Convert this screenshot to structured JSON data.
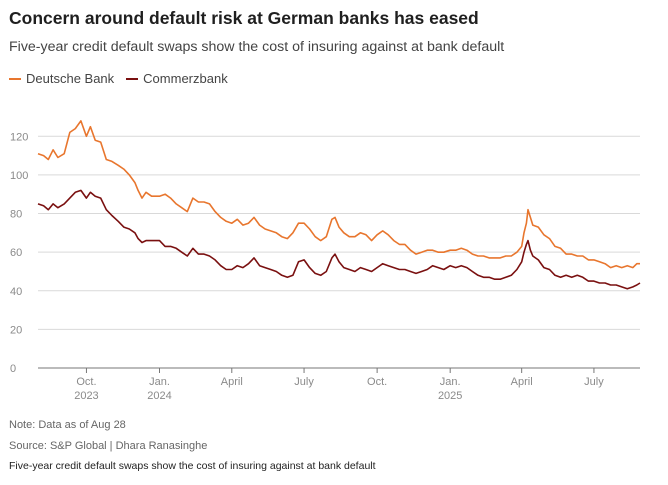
{
  "title": "Concern around default risk at German banks has eased",
  "subtitle": "Five-year credit default swaps show the cost of insuring against at bank default",
  "note": "Note: Data as of Aug 28",
  "source": "Source: S&P Global  | Dhara Ranasinghe",
  "caption": "Five-year credit default swaps show the cost of insuring against at bank default",
  "colors": {
    "deutsche": "#e8762e",
    "commerz": "#7a1010",
    "grid": "#d9d9d9",
    "axis": "#777777",
    "tick_text": "#8a8a8a"
  },
  "chart_data": {
    "type": "line",
    "title": "Concern around default risk at German banks has eased",
    "ylim": [
      0,
      130
    ],
    "yticks": [
      0,
      20,
      40,
      60,
      80,
      100,
      120
    ],
    "grid": true,
    "legend_position": "top-left",
    "x_start": "2023-08-01",
    "x_end": "2025-08-28",
    "xticks": [
      {
        "date": "2023-10-01",
        "label": "Oct.",
        "year": "2023"
      },
      {
        "date": "2024-01-01",
        "label": "Jan.",
        "year": "2024"
      },
      {
        "date": "2024-04-01",
        "label": "April",
        "year": ""
      },
      {
        "date": "2024-07-01",
        "label": "July",
        "year": ""
      },
      {
        "date": "2024-10-01",
        "label": "Oct.",
        "year": ""
      },
      {
        "date": "2025-01-01",
        "label": "Jan.",
        "year": "2025"
      },
      {
        "date": "2025-04-01",
        "label": "April",
        "year": ""
      },
      {
        "date": "2025-07-01",
        "label": "July",
        "year": ""
      }
    ],
    "series": [
      {
        "name": "Deutsche Bank",
        "points": [
          [
            "2023-08-01",
            111
          ],
          [
            "2023-08-08",
            110
          ],
          [
            "2023-08-14",
            108
          ],
          [
            "2023-08-20",
            113
          ],
          [
            "2023-08-26",
            109
          ],
          [
            "2023-09-03",
            111
          ],
          [
            "2023-09-10",
            122
          ],
          [
            "2023-09-17",
            124
          ],
          [
            "2023-09-24",
            128
          ],
          [
            "2023-10-01",
            120
          ],
          [
            "2023-10-06",
            125
          ],
          [
            "2023-10-12",
            118
          ],
          [
            "2023-10-19",
            117
          ],
          [
            "2023-10-26",
            108
          ],
          [
            "2023-11-02",
            107
          ],
          [
            "2023-11-10",
            105
          ],
          [
            "2023-11-17",
            103
          ],
          [
            "2023-11-24",
            100
          ],
          [
            "2023-12-01",
            96
          ],
          [
            "2023-12-05",
            92
          ],
          [
            "2023-12-10",
            88
          ],
          [
            "2023-12-15",
            91
          ],
          [
            "2023-12-22",
            89
          ],
          [
            "2024-01-01",
            89
          ],
          [
            "2024-01-08",
            90
          ],
          [
            "2024-01-15",
            88
          ],
          [
            "2024-01-22",
            85
          ],
          [
            "2024-01-29",
            83
          ],
          [
            "2024-02-05",
            81
          ],
          [
            "2024-02-12",
            88
          ],
          [
            "2024-02-19",
            86
          ],
          [
            "2024-02-26",
            86
          ],
          [
            "2024-03-04",
            85
          ],
          [
            "2024-03-11",
            81
          ],
          [
            "2024-03-18",
            78
          ],
          [
            "2024-03-25",
            76
          ],
          [
            "2024-04-01",
            75
          ],
          [
            "2024-04-08",
            77
          ],
          [
            "2024-04-15",
            74
          ],
          [
            "2024-04-22",
            75
          ],
          [
            "2024-04-29",
            78
          ],
          [
            "2024-05-06",
            74
          ],
          [
            "2024-05-13",
            72
          ],
          [
            "2024-05-20",
            71
          ],
          [
            "2024-05-27",
            70
          ],
          [
            "2024-06-03",
            68
          ],
          [
            "2024-06-10",
            67
          ],
          [
            "2024-06-17",
            70
          ],
          [
            "2024-06-24",
            75
          ],
          [
            "2024-07-01",
            75
          ],
          [
            "2024-07-08",
            72
          ],
          [
            "2024-07-15",
            68
          ],
          [
            "2024-07-22",
            66
          ],
          [
            "2024-07-29",
            68
          ],
          [
            "2024-08-05",
            77
          ],
          [
            "2024-08-09",
            78
          ],
          [
            "2024-08-14",
            73
          ],
          [
            "2024-08-20",
            70
          ],
          [
            "2024-08-27",
            68
          ],
          [
            "2024-09-03",
            68
          ],
          [
            "2024-09-10",
            70
          ],
          [
            "2024-09-17",
            69
          ],
          [
            "2024-09-24",
            66
          ],
          [
            "2024-10-01",
            69
          ],
          [
            "2024-10-08",
            71
          ],
          [
            "2024-10-15",
            69
          ],
          [
            "2024-10-22",
            66
          ],
          [
            "2024-10-29",
            64
          ],
          [
            "2024-11-05",
            64
          ],
          [
            "2024-11-12",
            61
          ],
          [
            "2024-11-19",
            59
          ],
          [
            "2024-11-26",
            60
          ],
          [
            "2024-12-03",
            61
          ],
          [
            "2024-12-10",
            61
          ],
          [
            "2024-12-17",
            60
          ],
          [
            "2024-12-24",
            60
          ],
          [
            "2025-01-01",
            61
          ],
          [
            "2025-01-08",
            61
          ],
          [
            "2025-01-15",
            62
          ],
          [
            "2025-01-22",
            61
          ],
          [
            "2025-01-29",
            59
          ],
          [
            "2025-02-05",
            58
          ],
          [
            "2025-02-12",
            58
          ],
          [
            "2025-02-19",
            57
          ],
          [
            "2025-02-26",
            57
          ],
          [
            "2025-03-05",
            57
          ],
          [
            "2025-03-12",
            58
          ],
          [
            "2025-03-19",
            58
          ],
          [
            "2025-03-26",
            60
          ],
          [
            "2025-04-01",
            63
          ],
          [
            "2025-04-04",
            70
          ],
          [
            "2025-04-07",
            75
          ],
          [
            "2025-04-09",
            82
          ],
          [
            "2025-04-12",
            78
          ],
          [
            "2025-04-15",
            74
          ],
          [
            "2025-04-22",
            73
          ],
          [
            "2025-04-29",
            69
          ],
          [
            "2025-05-06",
            67
          ],
          [
            "2025-05-13",
            63
          ],
          [
            "2025-05-20",
            62
          ],
          [
            "2025-05-27",
            59
          ],
          [
            "2025-06-03",
            59
          ],
          [
            "2025-06-10",
            58
          ],
          [
            "2025-06-17",
            58
          ],
          [
            "2025-06-24",
            56
          ],
          [
            "2025-07-01",
            56
          ],
          [
            "2025-07-08",
            55
          ],
          [
            "2025-07-15",
            54
          ],
          [
            "2025-07-22",
            52
          ],
          [
            "2025-07-29",
            53
          ],
          [
            "2025-08-05",
            52
          ],
          [
            "2025-08-12",
            53
          ],
          [
            "2025-08-19",
            52
          ],
          [
            "2025-08-24",
            54
          ],
          [
            "2025-08-28",
            54
          ]
        ]
      },
      {
        "name": "Commerzbank",
        "points": [
          [
            "2023-08-01",
            85
          ],
          [
            "2023-08-08",
            84
          ],
          [
            "2023-08-14",
            82
          ],
          [
            "2023-08-20",
            85
          ],
          [
            "2023-08-26",
            83
          ],
          [
            "2023-09-03",
            85
          ],
          [
            "2023-09-10",
            88
          ],
          [
            "2023-09-17",
            91
          ],
          [
            "2023-09-24",
            92
          ],
          [
            "2023-10-01",
            88
          ],
          [
            "2023-10-06",
            91
          ],
          [
            "2023-10-12",
            89
          ],
          [
            "2023-10-19",
            88
          ],
          [
            "2023-10-26",
            82
          ],
          [
            "2023-11-02",
            79
          ],
          [
            "2023-11-10",
            76
          ],
          [
            "2023-11-17",
            73
          ],
          [
            "2023-11-24",
            72
          ],
          [
            "2023-12-01",
            70
          ],
          [
            "2023-12-05",
            67
          ],
          [
            "2023-12-10",
            65
          ],
          [
            "2023-12-15",
            66
          ],
          [
            "2023-12-22",
            66
          ],
          [
            "2024-01-01",
            66
          ],
          [
            "2024-01-08",
            63
          ],
          [
            "2024-01-15",
            63
          ],
          [
            "2024-01-22",
            62
          ],
          [
            "2024-01-29",
            60
          ],
          [
            "2024-02-05",
            58
          ],
          [
            "2024-02-12",
            62
          ],
          [
            "2024-02-19",
            59
          ],
          [
            "2024-02-26",
            59
          ],
          [
            "2024-03-04",
            58
          ],
          [
            "2024-03-11",
            56
          ],
          [
            "2024-03-18",
            53
          ],
          [
            "2024-03-25",
            51
          ],
          [
            "2024-04-01",
            51
          ],
          [
            "2024-04-08",
            53
          ],
          [
            "2024-04-15",
            52
          ],
          [
            "2024-04-22",
            54
          ],
          [
            "2024-04-29",
            57
          ],
          [
            "2024-05-06",
            53
          ],
          [
            "2024-05-13",
            52
          ],
          [
            "2024-05-20",
            51
          ],
          [
            "2024-05-27",
            50
          ],
          [
            "2024-06-03",
            48
          ],
          [
            "2024-06-10",
            47
          ],
          [
            "2024-06-17",
            48
          ],
          [
            "2024-06-24",
            55
          ],
          [
            "2024-07-01",
            56
          ],
          [
            "2024-07-08",
            52
          ],
          [
            "2024-07-15",
            49
          ],
          [
            "2024-07-22",
            48
          ],
          [
            "2024-07-29",
            50
          ],
          [
            "2024-08-05",
            57
          ],
          [
            "2024-08-09",
            59
          ],
          [
            "2024-08-14",
            55
          ],
          [
            "2024-08-20",
            52
          ],
          [
            "2024-08-27",
            51
          ],
          [
            "2024-09-03",
            50
          ],
          [
            "2024-09-10",
            52
          ],
          [
            "2024-09-17",
            51
          ],
          [
            "2024-09-24",
            50
          ],
          [
            "2024-10-01",
            52
          ],
          [
            "2024-10-08",
            54
          ],
          [
            "2024-10-15",
            53
          ],
          [
            "2024-10-22",
            52
          ],
          [
            "2024-10-29",
            51
          ],
          [
            "2024-11-05",
            51
          ],
          [
            "2024-11-12",
            50
          ],
          [
            "2024-11-19",
            49
          ],
          [
            "2024-11-26",
            50
          ],
          [
            "2024-12-03",
            51
          ],
          [
            "2024-12-10",
            53
          ],
          [
            "2024-12-17",
            52
          ],
          [
            "2024-12-24",
            51
          ],
          [
            "2025-01-01",
            53
          ],
          [
            "2025-01-08",
            52
          ],
          [
            "2025-01-15",
            53
          ],
          [
            "2025-01-22",
            52
          ],
          [
            "2025-01-29",
            50
          ],
          [
            "2025-02-05",
            48
          ],
          [
            "2025-02-12",
            47
          ],
          [
            "2025-02-19",
            47
          ],
          [
            "2025-02-26",
            46
          ],
          [
            "2025-03-05",
            46
          ],
          [
            "2025-03-12",
            47
          ],
          [
            "2025-03-19",
            48
          ],
          [
            "2025-03-26",
            51
          ],
          [
            "2025-04-01",
            55
          ],
          [
            "2025-04-04",
            60
          ],
          [
            "2025-04-07",
            64
          ],
          [
            "2025-04-09",
            66
          ],
          [
            "2025-04-12",
            61
          ],
          [
            "2025-04-15",
            58
          ],
          [
            "2025-04-22",
            56
          ],
          [
            "2025-04-29",
            52
          ],
          [
            "2025-05-06",
            51
          ],
          [
            "2025-05-13",
            48
          ],
          [
            "2025-05-20",
            47
          ],
          [
            "2025-05-27",
            48
          ],
          [
            "2025-06-03",
            47
          ],
          [
            "2025-06-10",
            48
          ],
          [
            "2025-06-17",
            47
          ],
          [
            "2025-06-24",
            45
          ],
          [
            "2025-07-01",
            45
          ],
          [
            "2025-07-08",
            44
          ],
          [
            "2025-07-15",
            44
          ],
          [
            "2025-07-22",
            43
          ],
          [
            "2025-07-29",
            43
          ],
          [
            "2025-08-05",
            42
          ],
          [
            "2025-08-12",
            41
          ],
          [
            "2025-08-19",
            42
          ],
          [
            "2025-08-24",
            43
          ],
          [
            "2025-08-28",
            44
          ]
        ]
      }
    ]
  }
}
